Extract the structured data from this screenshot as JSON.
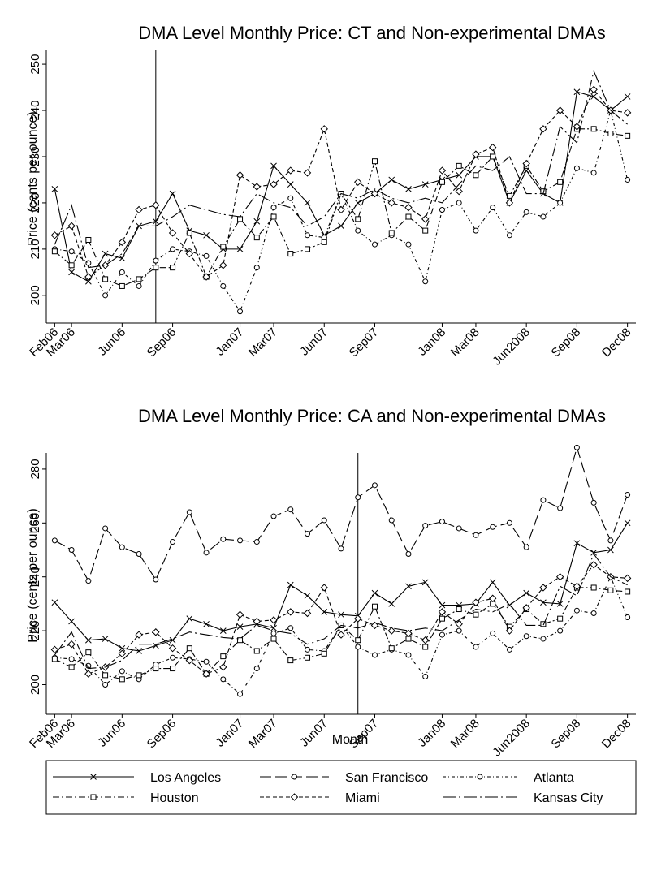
{
  "chart_data": [
    {
      "type": "line",
      "title": "DMA Level Monthly Price: CT and Non-experimental DMAs",
      "y_label": "Price (cents per ounce)",
      "categories": [
        "Feb06",
        "Mar06",
        null,
        null,
        "Jun06",
        null,
        null,
        "Sep06",
        null,
        null,
        null,
        "Jan07",
        null,
        "Mar07",
        null,
        null,
        "Jun07",
        null,
        null,
        "Sep07",
        null,
        null,
        null,
        "Jan08",
        null,
        "Mar08",
        null,
        null,
        "Jun2008",
        null,
        null,
        "Sep08",
        null,
        null,
        "Dec08"
      ],
      "ylim": [
        194,
        253
      ],
      "yticks": [
        200,
        210,
        220,
        230,
        240,
        250
      ],
      "vline": 6,
      "series": [
        {
          "color": "#000000",
          "dash": "solid",
          "marker": "x",
          "values": [
            223,
            205,
            203,
            209,
            208,
            215,
            216,
            222,
            214,
            213,
            210,
            210,
            216,
            228,
            224,
            220,
            213,
            215,
            220,
            222,
            225,
            223,
            224,
            225,
            226,
            230,
            230,
            220,
            227,
            222,
            220,
            244,
            243,
            240,
            243
          ]
        },
        {
          "color": "#000000",
          "dash": "short-dash-dot",
          "marker": "circle",
          "values": [
            210,
            209.5,
            207,
            200,
            205,
            202,
            207.5,
            210,
            209.5,
            208.5,
            202,
            196.5,
            206,
            219,
            221,
            213,
            212.5,
            222,
            214,
            211,
            213,
            211,
            203,
            218.5,
            220,
            214,
            219,
            213,
            218,
            217,
            220,
            227.5,
            226.5,
            240,
            225
          ]
        },
        {
          "color": "#000000",
          "dash": "dash-dot",
          "marker": "square",
          "values": [
            209.5,
            206.5,
            212,
            203.5,
            202,
            203.5,
            206,
            206,
            213.5,
            204,
            210.5,
            216.5,
            212.5,
            217,
            209,
            210,
            211.5,
            222,
            216.5,
            229,
            213.5,
            217,
            214,
            224.5,
            228,
            226,
            230,
            221.5,
            228,
            222.5,
            224.5,
            236,
            236,
            235,
            234.5
          ]
        },
        {
          "color": "#000000",
          "dash": "short-dash",
          "marker": "diamond",
          "values": [
            213,
            215,
            204,
            206.5,
            211.5,
            218.5,
            219.5,
            213.5,
            209,
            204,
            206.5,
            226,
            223.5,
            224,
            227,
            226.5,
            236,
            218.5,
            224.5,
            222,
            220,
            219,
            216.5,
            227,
            222.5,
            230.5,
            232,
            220,
            228.5,
            236,
            240,
            236.5,
            244.5,
            240,
            239.5
          ]
        },
        {
          "color": "#000000",
          "dash": "long-dash-dot",
          "marker": "none",
          "values": [
            211,
            219.5,
            206,
            206.5,
            209,
            215,
            215,
            217,
            219.5,
            218.5,
            217.5,
            217,
            222,
            220,
            219,
            215,
            217,
            222,
            221,
            223,
            221,
            220,
            221,
            220,
            224,
            228,
            227,
            230,
            222,
            222,
            236.5,
            233,
            248.5,
            240,
            237
          ]
        }
      ]
    },
    {
      "type": "line",
      "title": "DMA Level Monthly Price: CA and Non-experimental DMAs",
      "y_label": "Price (cents per ounce)",
      "x_label": "Month",
      "categories": [
        "Feb06",
        "Mar06",
        null,
        null,
        "Jun06",
        null,
        null,
        "Sep06",
        null,
        null,
        null,
        "Jan07",
        null,
        "Mar07",
        null,
        null,
        "Jun07",
        null,
        null,
        "Sep07",
        null,
        null,
        null,
        "Jan08",
        null,
        "Mar08",
        null,
        null,
        "Jun2008",
        null,
        null,
        "Sep08",
        null,
        null,
        "Dec08"
      ],
      "ylim": [
        189,
        286
      ],
      "yticks": [
        200,
        220,
        240,
        260,
        280
      ],
      "vline": 18,
      "series": [
        {
          "name": "Los Angeles",
          "color": "#000000",
          "dash": "solid",
          "marker": "x",
          "values": [
            230.5,
            223.5,
            216.5,
            217,
            213.5,
            212.5,
            214.5,
            216.5,
            224.5,
            222.5,
            220,
            221.5,
            222.5,
            221,
            237,
            233,
            227,
            226,
            225.5,
            234,
            230,
            236.5,
            238,
            229.5,
            229.5,
            230,
            238,
            229.5,
            234,
            230.5,
            230,
            252.5,
            249,
            250,
            260
          ]
        },
        {
          "name": "San Francisco",
          "color": "#000000",
          "dash": "long-dash",
          "marker": "circle",
          "values": [
            253.5,
            250,
            238.5,
            258,
            251,
            248.5,
            239,
            253,
            264,
            249,
            254,
            253.5,
            253,
            262.5,
            265,
            256,
            261,
            250.5,
            269.5,
            274,
            261,
            248.5,
            259,
            260.5,
            258,
            255.5,
            258.5,
            260,
            251,
            268.5,
            265.5,
            288,
            267.5,
            253.5,
            270.5
          ]
        },
        {
          "name": "Atlanta",
          "color": "#000000",
          "dash": "short-dash-dot",
          "marker": "circle",
          "values": [
            210,
            209.5,
            207,
            200,
            205,
            202,
            207.5,
            210,
            209.5,
            208.5,
            202,
            196.5,
            206,
            219,
            221,
            213,
            212.5,
            222,
            214,
            211,
            213,
            211,
            203,
            218.5,
            220,
            214,
            219,
            213,
            218,
            217,
            220,
            227.5,
            226.5,
            240,
            225
          ]
        },
        {
          "name": "Houston",
          "color": "#000000",
          "dash": "dash-dot",
          "marker": "square",
          "values": [
            209.5,
            206.5,
            212,
            203.5,
            202,
            203.5,
            206,
            206,
            213.5,
            204,
            210.5,
            216.5,
            212.5,
            217,
            209,
            210,
            211.5,
            222,
            216.5,
            229,
            213.5,
            217,
            214,
            224.5,
            228,
            226,
            230,
            221.5,
            228,
            222.5,
            224.5,
            236,
            236,
            235,
            234.5
          ]
        },
        {
          "name": "Miami",
          "color": "#000000",
          "dash": "short-dash",
          "marker": "diamond",
          "values": [
            213,
            215,
            204,
            206.5,
            211.5,
            218.5,
            219.5,
            213.5,
            209,
            204,
            206.5,
            226,
            223.5,
            224,
            227,
            226.5,
            236,
            218.5,
            224.5,
            222,
            220,
            219,
            216.5,
            227,
            222.5,
            230.5,
            232,
            220,
            228.5,
            236,
            240,
            236.5,
            244.5,
            240,
            239.5
          ]
        },
        {
          "name": "Kansas City",
          "color": "#000000",
          "dash": "long-dash-dot",
          "marker": "none",
          "values": [
            211,
            219.5,
            206,
            206.5,
            209,
            215,
            215,
            217,
            219.5,
            218.5,
            217.5,
            217,
            222,
            220,
            219,
            215,
            217,
            222,
            221,
            223,
            221,
            220,
            221,
            220,
            224,
            228,
            227,
            230,
            222,
            222,
            236.5,
            233,
            248.5,
            240,
            237
          ]
        }
      ]
    }
  ]
}
